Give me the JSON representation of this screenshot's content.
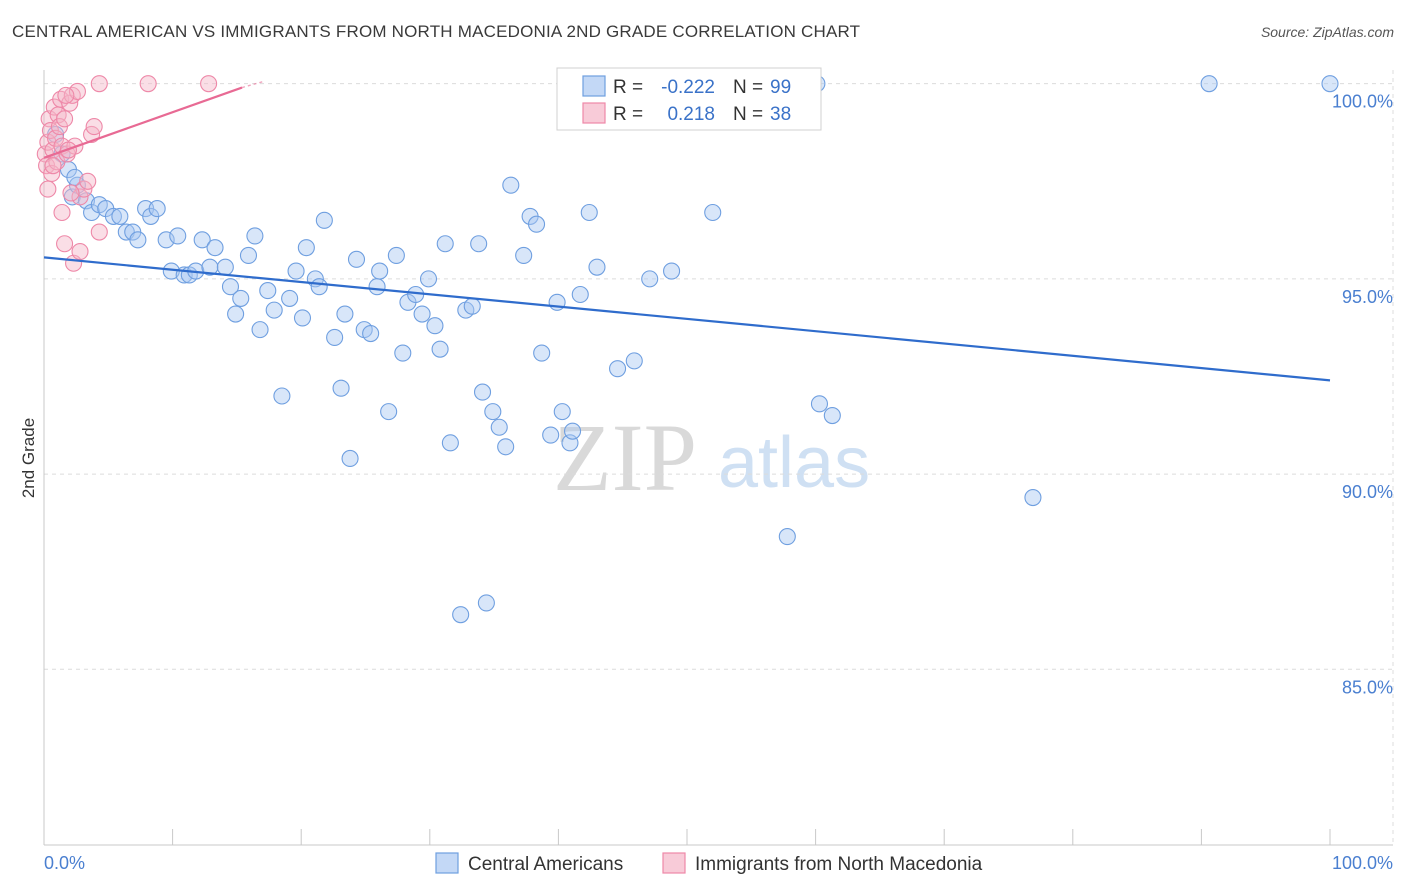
{
  "header": {
    "title": "CENTRAL AMERICAN VS IMMIGRANTS FROM NORTH MACEDONIA 2ND GRADE CORRELATION CHART",
    "source": "Source: ZipAtlas.com"
  },
  "watermark": {
    "zip": "ZIP",
    "atlas": "atlas"
  },
  "legend_box": {
    "rows": [
      {
        "r_label": "R =",
        "r_value": "-0.222",
        "n_label": "N =",
        "n_value": "99",
        "color": "#a9c8f2"
      },
      {
        "r_label": "R =",
        "r_value": "0.218",
        "n_label": "N =",
        "n_value": "38",
        "color": "#f5b5c8"
      }
    ]
  },
  "bottom_legend": {
    "items": [
      {
        "label": "Central Americans",
        "color": "#a9c8f2"
      },
      {
        "label": "Immigrants from North Macedonia",
        "color": "#f5b5c8"
      }
    ]
  },
  "colors": {
    "blue_fill": "#a9c8f2",
    "blue_stroke": "#6f9fe0",
    "blue_line": "#2f6ccc",
    "pink_fill": "#f5b5c8",
    "pink_stroke": "#ee88a8",
    "pink_line": "#e86a94",
    "grid": "#dcdcdc",
    "tick_label": "#4a7fd0"
  },
  "chart_data": {
    "type": "scatter",
    "title": "CENTRAL AMERICAN VS IMMIGRANTS FROM NORTH MACEDONIA 2ND GRADE CORRELATION CHART",
    "xlabel": "",
    "ylabel": "2nd Grade",
    "xlim": [
      0,
      100
    ],
    "ylim": [
      80.5,
      100.35
    ],
    "x_tick_labels": [
      "0.0%",
      "100.0%"
    ],
    "y_ticks": [
      85,
      90,
      95,
      100
    ],
    "y_tick_labels": [
      "85.0%",
      "90.0%",
      "95.0%",
      "100.0%"
    ],
    "grid": true,
    "legend_placement": "top-center",
    "series": [
      {
        "name": "Central Americans",
        "r": -0.222,
        "n": 99,
        "trend": {
          "x": [
            0,
            100
          ],
          "y": [
            95.55,
            92.4
          ]
        },
        "points": [
          [
            0.9,
            98.7
          ],
          [
            1.4,
            98.2
          ],
          [
            1.9,
            97.8
          ],
          [
            2.2,
            97.1
          ],
          [
            2.6,
            97.4
          ],
          [
            3.3,
            97.0
          ],
          [
            3.7,
            96.7
          ],
          [
            4.3,
            96.9
          ],
          [
            4.8,
            96.8
          ],
          [
            5.4,
            96.6
          ],
          [
            5.9,
            96.6
          ],
          [
            6.4,
            96.2
          ],
          [
            6.9,
            96.2
          ],
          [
            7.3,
            96.0
          ],
          [
            7.9,
            96.8
          ],
          [
            8.3,
            96.6
          ],
          [
            8.8,
            96.8
          ],
          [
            9.5,
            96.0
          ],
          [
            9.9,
            95.2
          ],
          [
            10.4,
            96.1
          ],
          [
            10.9,
            95.1
          ],
          [
            11.3,
            95.1
          ],
          [
            11.8,
            95.2
          ],
          [
            12.3,
            96.0
          ],
          [
            12.9,
            95.3
          ],
          [
            13.3,
            95.8
          ],
          [
            14.1,
            95.3
          ],
          [
            14.5,
            94.8
          ],
          [
            14.9,
            94.1
          ],
          [
            15.3,
            94.5
          ],
          [
            15.9,
            95.6
          ],
          [
            16.4,
            96.1
          ],
          [
            16.8,
            93.7
          ],
          [
            17.4,
            94.7
          ],
          [
            17.9,
            94.2
          ],
          [
            18.5,
            92.0
          ],
          [
            19.1,
            94.5
          ],
          [
            19.6,
            95.2
          ],
          [
            20.1,
            94.0
          ],
          [
            20.4,
            95.8
          ],
          [
            21.1,
            95.0
          ],
          [
            21.4,
            94.8
          ],
          [
            21.8,
            96.5
          ],
          [
            22.6,
            93.5
          ],
          [
            23.1,
            92.2
          ],
          [
            23.4,
            94.1
          ],
          [
            23.8,
            90.4
          ],
          [
            24.3,
            95.5
          ],
          [
            24.9,
            93.7
          ],
          [
            25.4,
            93.6
          ],
          [
            25.9,
            94.8
          ],
          [
            26.1,
            95.2
          ],
          [
            26.8,
            91.6
          ],
          [
            27.4,
            95.6
          ],
          [
            27.9,
            93.1
          ],
          [
            28.3,
            94.4
          ],
          [
            28.9,
            94.6
          ],
          [
            29.4,
            94.1
          ],
          [
            29.9,
            95.0
          ],
          [
            30.4,
            93.8
          ],
          [
            30.8,
            93.2
          ],
          [
            31.2,
            95.9
          ],
          [
            31.6,
            90.8
          ],
          [
            32.8,
            94.2
          ],
          [
            33.3,
            94.3
          ],
          [
            33.8,
            95.9
          ],
          [
            34.1,
            92.1
          ],
          [
            34.9,
            91.6
          ],
          [
            35.4,
            91.2
          ],
          [
            35.9,
            90.7
          ],
          [
            36.3,
            97.4
          ],
          [
            37.3,
            95.6
          ],
          [
            37.8,
            96.6
          ],
          [
            38.3,
            96.4
          ],
          [
            38.7,
            93.1
          ],
          [
            39.4,
            91.0
          ],
          [
            39.9,
            94.4
          ],
          [
            40.3,
            91.6
          ],
          [
            40.9,
            90.8
          ],
          [
            41.1,
            91.1
          ],
          [
            41.7,
            94.6
          ],
          [
            42.4,
            96.7
          ],
          [
            43.0,
            95.3
          ],
          [
            44.6,
            92.7
          ],
          [
            45.9,
            92.9
          ],
          [
            47.1,
            95.0
          ],
          [
            48.8,
            95.2
          ],
          [
            52.0,
            96.7
          ],
          [
            57.8,
            88.4
          ],
          [
            60.3,
            91.8
          ],
          [
            61.3,
            91.5
          ],
          [
            76.9,
            89.4
          ],
          [
            32.4,
            86.4
          ],
          [
            34.4,
            86.7
          ],
          [
            60.1,
            100.0
          ],
          [
            90.6,
            100.0
          ],
          [
            100.0,
            100.0
          ],
          [
            49.2,
            100.0
          ],
          [
            2.4,
            97.6
          ]
        ]
      },
      {
        "name": "Immigrants from North Macedonia",
        "r": 0.218,
        "n": 38,
        "trend": {
          "x": [
            0,
            15.4
          ],
          "y": [
            98.1,
            99.9
          ]
        },
        "points": [
          [
            0.1,
            98.2
          ],
          [
            0.2,
            97.9
          ],
          [
            0.3,
            98.5
          ],
          [
            0.4,
            99.1
          ],
          [
            0.5,
            98.8
          ],
          [
            0.6,
            97.7
          ],
          [
            0.7,
            98.3
          ],
          [
            0.8,
            99.4
          ],
          [
            0.9,
            98.6
          ],
          [
            1.0,
            98.0
          ],
          [
            1.1,
            99.2
          ],
          [
            1.2,
            98.9
          ],
          [
            1.3,
            99.6
          ],
          [
            1.4,
            98.4
          ],
          [
            1.6,
            99.1
          ],
          [
            1.8,
            98.2
          ],
          [
            2.0,
            99.5
          ],
          [
            2.2,
            99.7
          ],
          [
            2.4,
            98.4
          ],
          [
            2.6,
            99.8
          ],
          [
            2.8,
            97.1
          ],
          [
            3.1,
            97.3
          ],
          [
            3.4,
            97.5
          ],
          [
            3.7,
            98.7
          ],
          [
            3.9,
            98.9
          ],
          [
            4.3,
            96.2
          ],
          [
            1.4,
            96.7
          ],
          [
            1.6,
            95.9
          ],
          [
            2.3,
            95.4
          ],
          [
            2.8,
            95.7
          ],
          [
            4.3,
            100.0
          ],
          [
            8.1,
            100.0
          ],
          [
            12.8,
            100.0
          ],
          [
            0.3,
            97.3
          ],
          [
            0.7,
            97.9
          ],
          [
            1.9,
            98.3
          ],
          [
            2.1,
            97.2
          ],
          [
            1.7,
            99.7
          ]
        ]
      }
    ]
  }
}
